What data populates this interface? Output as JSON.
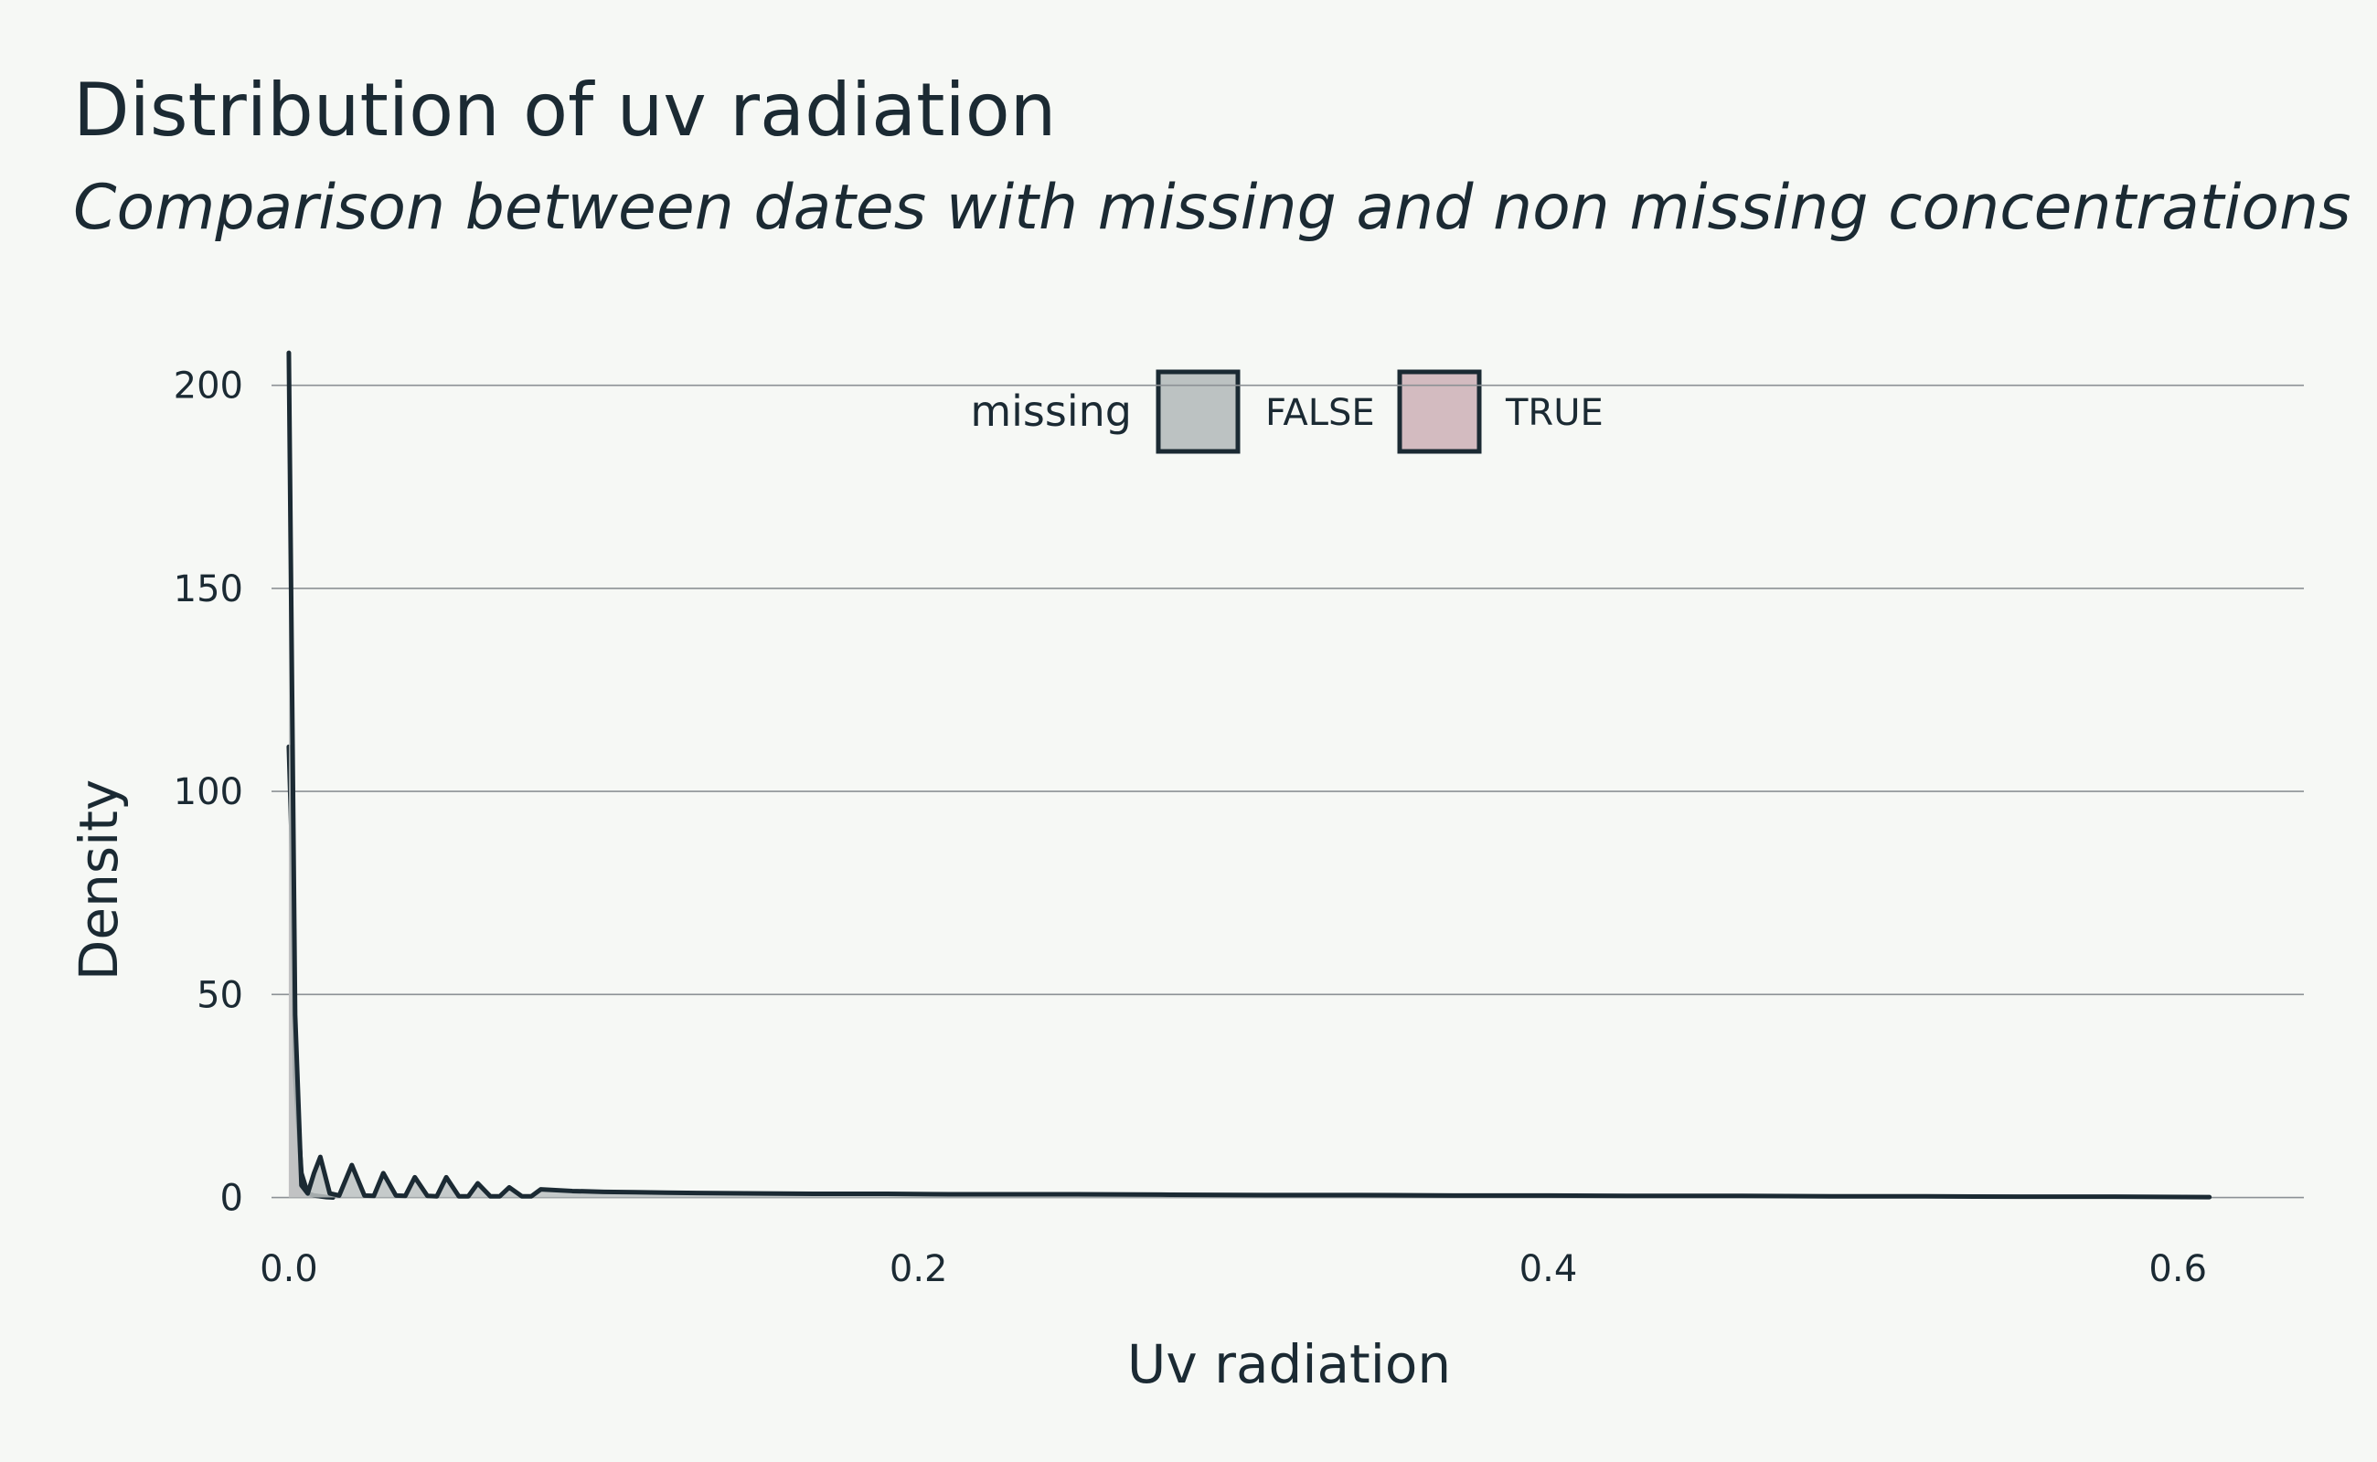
{
  "chart_data": {
    "type": "area",
    "title": "Distribution of uv radiation",
    "subtitle": "Comparison between dates with missing and non missing concentrations",
    "xlabel": "Uv radiation",
    "ylabel": "Density",
    "xlim": [
      -0.0055,
      0.64
    ],
    "ylim": [
      -10,
      215
    ],
    "x_ticks": [
      0.0,
      0.2,
      0.4,
      0.6
    ],
    "x_tick_labels": [
      "0.0",
      "0.2",
      "0.4",
      "0.6"
    ],
    "y_ticks": [
      0,
      50,
      100,
      150,
      200
    ],
    "y_tick_labels": [
      "0",
      "50",
      "100",
      "150",
      "200"
    ],
    "grid": "horizontal",
    "legend": {
      "title": "missing",
      "placement": "top-center",
      "entries": [
        {
          "label": "FALSE",
          "fill": "#bcc2c2",
          "stroke": "#1b2a33"
        },
        {
          "label": "TRUE",
          "fill": "#d3bbc0",
          "stroke": "#1b2a33"
        }
      ]
    },
    "series": [
      {
        "name": "FALSE",
        "fill": "#bcc2c2",
        "stroke": "#1b2a33",
        "x": [
          0.0,
          0.002,
          0.004,
          0.006,
          0.008,
          0.01,
          0.013,
          0.016,
          0.02,
          0.024,
          0.027,
          0.03,
          0.034,
          0.037,
          0.04,
          0.044,
          0.047,
          0.05,
          0.054,
          0.057,
          0.06,
          0.064,
          0.067,
          0.07,
          0.074,
          0.077,
          0.08,
          0.09,
          0.1,
          0.11,
          0.12,
          0.13,
          0.15,
          0.17,
          0.19,
          0.21,
          0.23,
          0.25,
          0.28,
          0.31,
          0.34,
          0.37,
          0.4,
          0.43,
          0.46,
          0.49,
          0.52,
          0.55,
          0.58,
          0.61
        ],
        "y": [
          208,
          45,
          3,
          1,
          6,
          10,
          1,
          0.5,
          8,
          0.5,
          0.4,
          6,
          0.5,
          0.4,
          5,
          0.4,
          0.3,
          5,
          0.3,
          0.3,
          3.5,
          0.3,
          0.3,
          2.5,
          0.3,
          0.3,
          2,
          1.6,
          1.4,
          1.3,
          1.2,
          1.1,
          1,
          0.9,
          0.9,
          0.8,
          0.8,
          0.8,
          0.7,
          0.6,
          0.6,
          0.5,
          0.5,
          0.4,
          0.4,
          0.3,
          0.3,
          0.2,
          0.2,
          0.1
        ]
      },
      {
        "name": "TRUE",
        "fill": "#d3bbc0",
        "stroke": "#1b2a33",
        "x": [
          0.0,
          0.001,
          0.002,
          0.004,
          0.006,
          0.008,
          0.01,
          0.012,
          0.014
        ],
        "y": [
          111,
          85,
          30,
          6,
          1,
          0.5,
          0.3,
          0.1,
          0
        ]
      }
    ]
  }
}
